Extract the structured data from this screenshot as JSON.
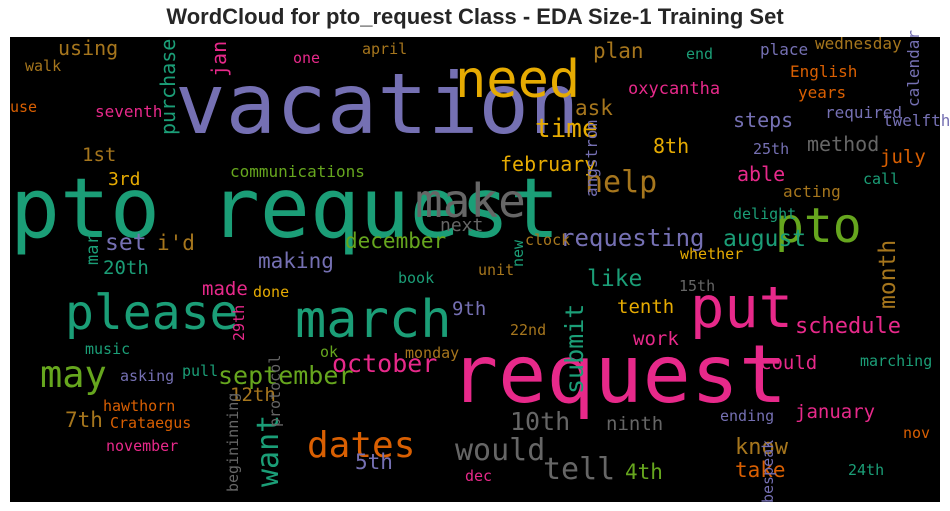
{
  "title": "WordCloud for pto_request Class - EDA Size-1 Training Set",
  "chart_data": {
    "type": "wordcloud",
    "title": "WordCloud for pto_request Class - EDA Size-1 Training Set",
    "background": "#000000",
    "palette": {
      "teal": "#1b9e77",
      "orange": "#d95f02",
      "purple": "#7570b3",
      "magenta": "#e7298a",
      "green": "#66a61e",
      "gold": "#e6ab02",
      "brown": "#a6761d",
      "grey": "#666666"
    },
    "words": [
      {
        "text": "vacation",
        "weight": 1.0,
        "color": "purple",
        "orientation": "horizontal"
      },
      {
        "text": "pto request",
        "weight": 0.99,
        "color": "teal",
        "orientation": "horizontal"
      },
      {
        "text": "request",
        "weight": 0.95,
        "color": "magenta",
        "orientation": "horizontal"
      },
      {
        "text": "put",
        "weight": 0.66,
        "color": "magenta",
        "orientation": "horizontal"
      },
      {
        "text": "need",
        "weight": 0.6,
        "color": "gold",
        "orientation": "horizontal"
      },
      {
        "text": "march",
        "weight": 0.6,
        "color": "teal",
        "orientation": "horizontal"
      },
      {
        "text": "pto",
        "weight": 0.55,
        "color": "green",
        "orientation": "horizontal"
      },
      {
        "text": "please",
        "weight": 0.55,
        "color": "teal",
        "orientation": "horizontal"
      },
      {
        "text": "make",
        "weight": 0.52,
        "color": "grey",
        "orientation": "horizontal"
      },
      {
        "text": "may",
        "weight": 0.4,
        "color": "green",
        "orientation": "horizontal"
      },
      {
        "text": "dates",
        "weight": 0.38,
        "color": "orange",
        "orientation": "horizontal"
      },
      {
        "text": "help",
        "weight": 0.3,
        "color": "brown",
        "orientation": "horizontal"
      },
      {
        "text": "want",
        "weight": 0.3,
        "color": "teal",
        "orientation": "vertical"
      },
      {
        "text": "tell",
        "weight": 0.3,
        "color": "grey",
        "orientation": "horizontal"
      },
      {
        "text": "would",
        "weight": 0.3,
        "color": "grey",
        "orientation": "horizontal"
      },
      {
        "text": "time",
        "weight": 0.25,
        "color": "gold",
        "orientation": "horizontal"
      },
      {
        "text": "september",
        "weight": 0.24,
        "color": "green",
        "orientation": "horizontal"
      },
      {
        "text": "october",
        "weight": 0.24,
        "color": "magenta",
        "orientation": "horizontal"
      },
      {
        "text": "submit",
        "weight": 0.24,
        "color": "teal",
        "orientation": "vertical"
      },
      {
        "text": "10th",
        "weight": 0.24,
        "color": "grey",
        "orientation": "horizontal"
      },
      {
        "text": "requesting",
        "weight": 0.22,
        "color": "purple",
        "orientation": "horizontal"
      },
      {
        "text": "month",
        "weight": 0.21,
        "color": "brown",
        "orientation": "vertical"
      },
      {
        "text": "set",
        "weight": 0.21,
        "color": "purple",
        "orientation": "horizontal"
      },
      {
        "text": "august",
        "weight": 0.2,
        "color": "teal",
        "orientation": "horizontal"
      },
      {
        "text": "like",
        "weight": 0.2,
        "color": "teal",
        "orientation": "horizontal"
      },
      {
        "text": "schedule",
        "weight": 0.19,
        "color": "magenta",
        "orientation": "horizontal"
      },
      {
        "text": "know",
        "weight": 0.19,
        "color": "brown",
        "orientation": "horizontal"
      },
      {
        "text": "take",
        "weight": 0.18,
        "color": "orange",
        "orientation": "horizontal"
      },
      {
        "text": "december",
        "weight": 0.17,
        "color": "green",
        "orientation": "horizontal"
      },
      {
        "text": "ask",
        "weight": 0.18,
        "color": "brown",
        "orientation": "horizontal"
      },
      {
        "text": "plan",
        "weight": 0.18,
        "color": "brown",
        "orientation": "horizontal"
      },
      {
        "text": "making",
        "weight": 0.17,
        "color": "purple",
        "orientation": "horizontal"
      },
      {
        "text": "i'd",
        "weight": 0.17,
        "color": "brown",
        "orientation": "horizontal"
      },
      {
        "text": "5th",
        "weight": 0.17,
        "color": "purple",
        "orientation": "horizontal"
      },
      {
        "text": "4th",
        "weight": 0.17,
        "color": "green",
        "orientation": "horizontal"
      },
      {
        "text": "7th",
        "weight": 0.17,
        "color": "brown",
        "orientation": "horizontal"
      },
      {
        "text": "using",
        "weight": 0.16,
        "color": "brown",
        "orientation": "horizontal"
      },
      {
        "text": "purchase",
        "weight": 0.16,
        "color": "teal",
        "orientation": "vertical"
      },
      {
        "text": "jan",
        "weight": 0.16,
        "color": "magenta",
        "orientation": "vertical"
      },
      {
        "text": "steps",
        "weight": 0.16,
        "color": "purple",
        "orientation": "horizontal"
      },
      {
        "text": "method",
        "weight": 0.16,
        "color": "grey",
        "orientation": "horizontal"
      },
      {
        "text": "able",
        "weight": 0.16,
        "color": "magenta",
        "orientation": "horizontal"
      },
      {
        "text": "february",
        "weight": 0.16,
        "color": "gold",
        "orientation": "horizontal"
      },
      {
        "text": "8th",
        "weight": 0.16,
        "color": "gold",
        "orientation": "horizontal"
      },
      {
        "text": "9th",
        "weight": 0.15,
        "color": "purple",
        "orientation": "horizontal"
      },
      {
        "text": "20th",
        "weight": 0.15,
        "color": "teal",
        "orientation": "horizontal"
      },
      {
        "text": "12th",
        "weight": 0.15,
        "color": "brown",
        "orientation": "horizontal"
      },
      {
        "text": "july",
        "weight": 0.14,
        "color": "orange",
        "orientation": "horizontal"
      },
      {
        "text": "made",
        "weight": 0.14,
        "color": "magenta",
        "orientation": "horizontal"
      },
      {
        "text": "work",
        "weight": 0.14,
        "color": "magenta",
        "orientation": "horizontal"
      },
      {
        "text": "tenth",
        "weight": 0.14,
        "color": "gold",
        "orientation": "horizontal"
      },
      {
        "text": "could",
        "weight": 0.14,
        "color": "magenta",
        "orientation": "horizontal"
      },
      {
        "text": "ninth",
        "weight": 0.14,
        "color": "grey",
        "orientation": "horizontal"
      },
      {
        "text": "january",
        "weight": 0.14,
        "color": "magenta",
        "orientation": "horizontal"
      },
      {
        "text": "1st",
        "weight": 0.14,
        "color": "brown",
        "orientation": "horizontal"
      },
      {
        "text": "3rd",
        "weight": 0.13,
        "color": "gold",
        "orientation": "horizontal"
      },
      {
        "text": "next",
        "weight": 0.13,
        "color": "grey",
        "orientation": "horizontal"
      },
      {
        "text": "mar",
        "weight": 0.12,
        "color": "teal",
        "orientation": "vertical"
      },
      {
        "text": "oxycantha",
        "weight": 0.11,
        "color": "magenta",
        "orientation": "horizontal"
      },
      {
        "text": "seventh",
        "weight": 0.1,
        "color": "magenta",
        "orientation": "horizontal"
      },
      {
        "text": "communications",
        "weight": 0.1,
        "color": "green",
        "orientation": "horizontal"
      },
      {
        "text": "English",
        "weight": 0.1,
        "color": "orange",
        "orientation": "horizontal"
      },
      {
        "text": "years",
        "weight": 0.1,
        "color": "orange",
        "orientation": "horizontal"
      },
      {
        "text": "required",
        "weight": 0.1,
        "color": "purple",
        "orientation": "horizontal"
      },
      {
        "text": "twelfth",
        "weight": 0.1,
        "color": "purple",
        "orientation": "horizontal"
      },
      {
        "text": "wednesday",
        "weight": 0.1,
        "color": "brown",
        "orientation": "horizontal"
      },
      {
        "text": "place",
        "weight": 0.1,
        "color": "purple",
        "orientation": "horizontal"
      },
      {
        "text": "angstrom",
        "weight": 0.1,
        "color": "purple",
        "orientation": "vertical"
      },
      {
        "text": "calendar",
        "weight": 0.1,
        "color": "purple",
        "orientation": "vertical"
      },
      {
        "text": "25th",
        "weight": 0.09,
        "color": "purple",
        "orientation": "horizontal"
      },
      {
        "text": "acting",
        "weight": 0.1,
        "color": "brown",
        "orientation": "horizontal"
      },
      {
        "text": "call",
        "weight": 0.09,
        "color": "teal",
        "orientation": "horizontal"
      },
      {
        "text": "delight",
        "weight": 0.09,
        "color": "teal",
        "orientation": "horizontal"
      },
      {
        "text": "clock",
        "weight": 0.09,
        "color": "brown",
        "orientation": "horizontal"
      },
      {
        "text": "whether",
        "weight": 0.09,
        "color": "gold",
        "orientation": "horizontal"
      },
      {
        "text": "unit",
        "weight": 0.09,
        "color": "brown",
        "orientation": "horizontal"
      },
      {
        "text": "book",
        "weight": 0.09,
        "color": "teal",
        "orientation": "horizontal"
      },
      {
        "text": "done",
        "weight": 0.09,
        "color": "gold",
        "orientation": "horizontal"
      },
      {
        "text": "15th",
        "weight": 0.08,
        "color": "grey",
        "orientation": "horizontal"
      },
      {
        "text": "22nd",
        "weight": 0.08,
        "color": "brown",
        "orientation": "horizontal"
      },
      {
        "text": "29th",
        "weight": 0.08,
        "color": "magenta",
        "orientation": "vertical"
      },
      {
        "text": "music",
        "weight": 0.09,
        "color": "teal",
        "orientation": "horizontal"
      },
      {
        "text": "ok",
        "weight": 0.08,
        "color": "green",
        "orientation": "horizontal"
      },
      {
        "text": "monday",
        "weight": 0.09,
        "color": "brown",
        "orientation": "horizontal"
      },
      {
        "text": "asking",
        "weight": 0.09,
        "color": "purple",
        "orientation": "horizontal"
      },
      {
        "text": "pull",
        "weight": 0.09,
        "color": "teal",
        "orientation": "horizontal"
      },
      {
        "text": "marching",
        "weight": 0.09,
        "color": "teal",
        "orientation": "horizontal"
      },
      {
        "text": "hawthorn",
        "weight": 0.09,
        "color": "orange",
        "orientation": "horizontal"
      },
      {
        "text": "Crataegus",
        "weight": 0.09,
        "color": "orange",
        "orientation": "horizontal"
      },
      {
        "text": "protocol",
        "weight": 0.09,
        "color": "grey",
        "orientation": "vertical"
      },
      {
        "text": "ending",
        "weight": 0.09,
        "color": "purple",
        "orientation": "horizontal"
      },
      {
        "text": "november",
        "weight": 0.09,
        "color": "magenta",
        "orientation": "horizontal"
      },
      {
        "text": "begininning",
        "weight": 0.09,
        "color": "grey",
        "orientation": "vertical"
      },
      {
        "text": "dec",
        "weight": 0.08,
        "color": "magenta",
        "orientation": "horizontal"
      },
      {
        "text": "bespeak",
        "weight": 0.09,
        "color": "purple",
        "orientation": "vertical"
      },
      {
        "text": "nov",
        "weight": 0.08,
        "color": "orange",
        "orientation": "horizontal"
      },
      {
        "text": "24th",
        "weight": 0.08,
        "color": "teal",
        "orientation": "horizontal"
      },
      {
        "text": "new",
        "weight": 0.08,
        "color": "teal",
        "orientation": "vertical"
      },
      {
        "text": "walk",
        "weight": 0.09,
        "color": "brown",
        "orientation": "horizontal"
      },
      {
        "text": "use",
        "weight": 0.09,
        "color": "orange",
        "orientation": "horizontal"
      },
      {
        "text": "one",
        "weight": 0.08,
        "color": "magenta",
        "orientation": "horizontal"
      },
      {
        "text": "april",
        "weight": 0.08,
        "color": "brown",
        "orientation": "horizontal"
      },
      {
        "text": "end",
        "weight": 0.08,
        "color": "teal",
        "orientation": "horizontal"
      }
    ]
  }
}
